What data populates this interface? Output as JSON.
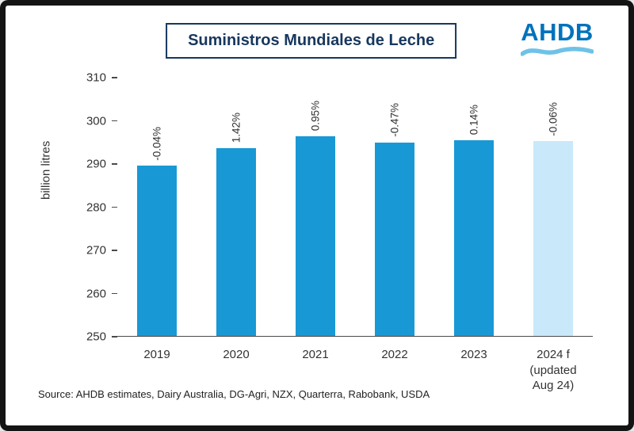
{
  "header": {
    "title": "Suministros Mundiales de Leche",
    "logo_text": "AHDB"
  },
  "chart_data": {
    "type": "bar",
    "title": "Suministros Mundiales de Leche",
    "xlabel": "",
    "ylabel": "billion litres",
    "ylim": [
      250,
      310
    ],
    "yticks": [
      250,
      260,
      270,
      280,
      290,
      300,
      310
    ],
    "grid": false,
    "legend": false,
    "categories": [
      "2019",
      "2020",
      "2021",
      "2022",
      "2023",
      "2024 f (updated Aug 24)"
    ],
    "x_label_lines": [
      [
        "2019"
      ],
      [
        "2020"
      ],
      [
        "2021"
      ],
      [
        "2022"
      ],
      [
        "2023"
      ],
      [
        "2024 f",
        "(updated",
        "Aug 24)"
      ]
    ],
    "values": [
      289.5,
      293.6,
      296.4,
      295.0,
      295.4,
      295.2
    ],
    "bar_labels": [
      "-0.04%",
      "1.42%",
      "0.95%",
      "-0.47%",
      "0.14%",
      "-0.06%"
    ],
    "bar_colors": [
      "#1899D5",
      "#1899D5",
      "#1899D5",
      "#1899D5",
      "#1899D5",
      "#C9E9FA"
    ]
  },
  "footer": {
    "source": "Source: AHDB estimates, Dairy Australia, DG-Agri, NZX, Quarterra, Rabobank, USDA"
  },
  "colors": {
    "bar": "#1899D5",
    "bar_forecast": "#C9E9FA",
    "title": "#17375E",
    "logo_blue": "#0072BC",
    "logo_wave": "#6FC2E7",
    "axis": "#4a4a4a"
  }
}
